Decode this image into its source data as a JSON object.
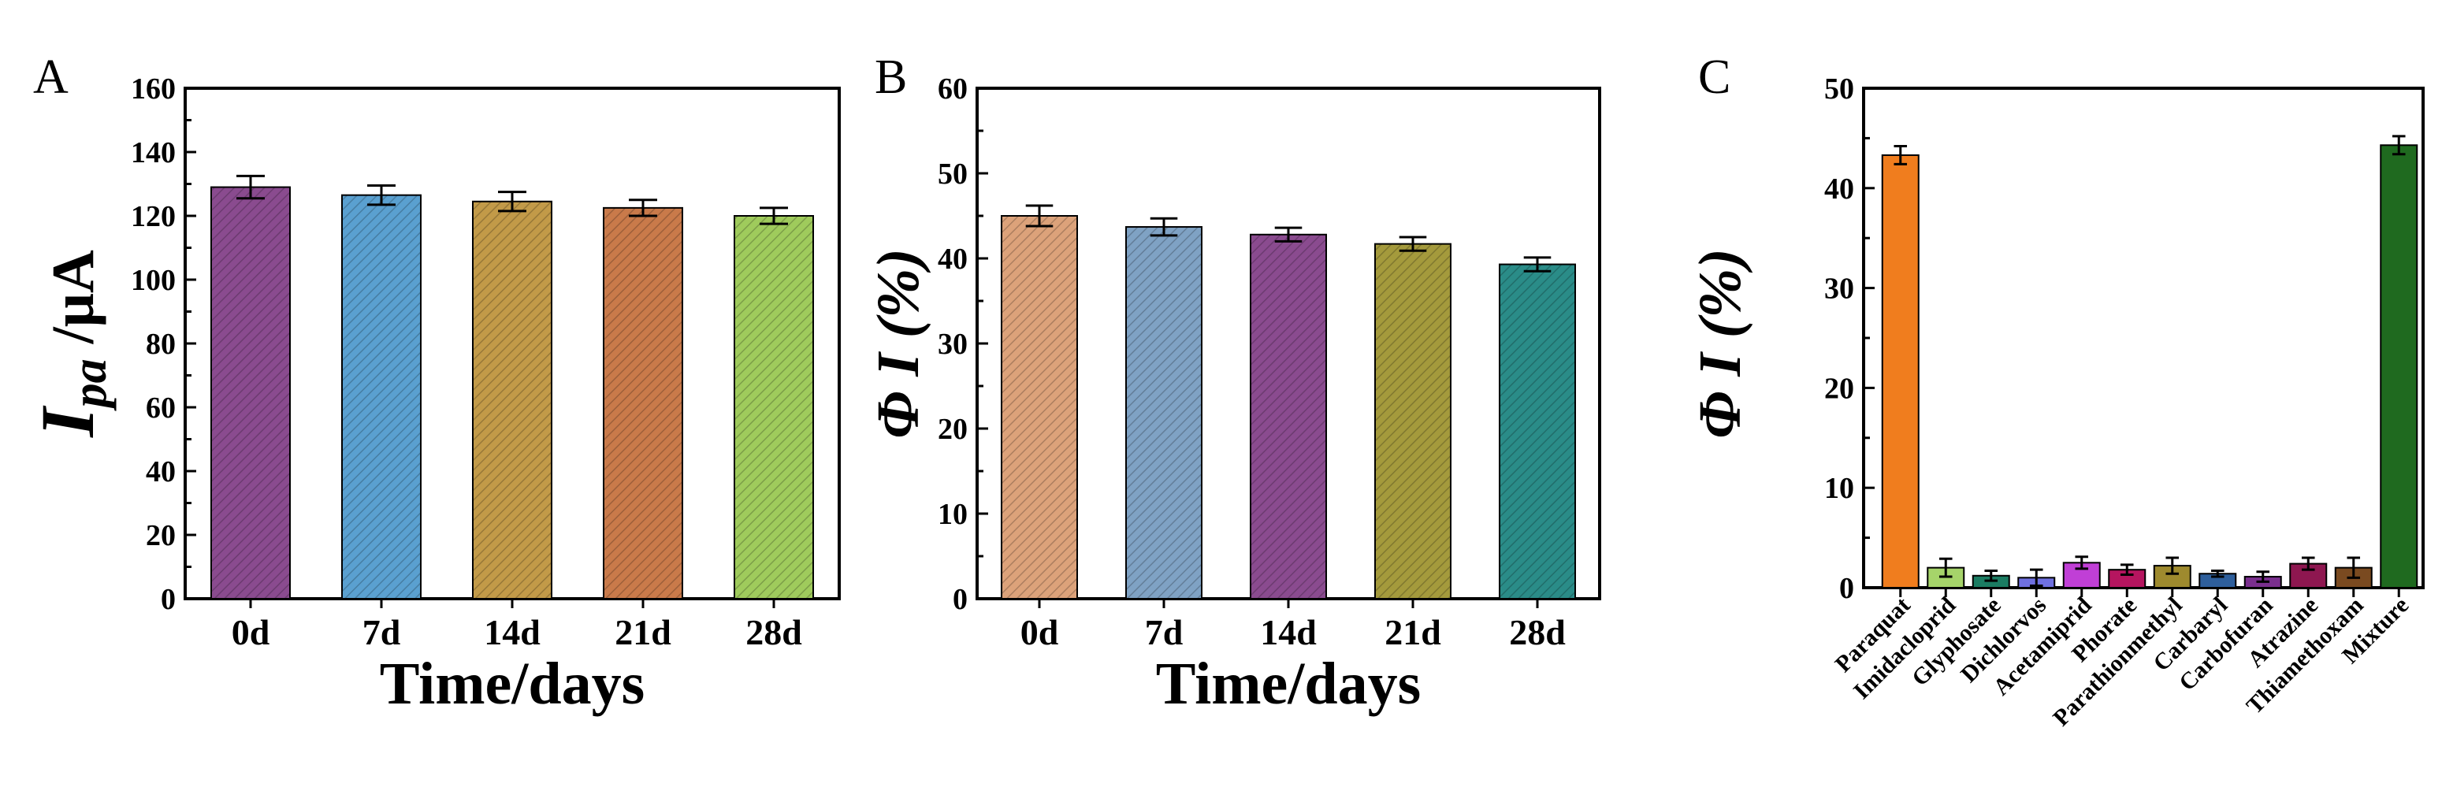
{
  "chart_data": [
    {
      "panel": "A",
      "type": "bar",
      "categories": [
        "0d",
        "7d",
        "14d",
        "21d",
        "28d"
      ],
      "values": [
        129,
        126.5,
        124.5,
        122.5,
        120
      ],
      "errors": [
        3.5,
        3,
        3,
        2.5,
        2.5
      ],
      "colors": [
        "#8a4b8f",
        "#5aa0d0",
        "#c29a48",
        "#c97a4a",
        "#9fcb5c"
      ],
      "xlabel": "Time/days",
      "ylabel": "Ipa /μA",
      "ylabel_main": "I",
      "ylabel_sub": "pa",
      "ylabel_unit": " /μA",
      "ylim": [
        0,
        160
      ],
      "yticks": [
        "0",
        "20",
        "40",
        "60",
        "80",
        "100",
        "120",
        "140",
        "160"
      ],
      "grid": false,
      "hatched": true
    },
    {
      "panel": "B",
      "type": "bar",
      "categories": [
        "0d",
        "7d",
        "14d",
        "21d",
        "28d"
      ],
      "values": [
        45,
        43.7,
        42.8,
        41.7,
        39.3
      ],
      "errors": [
        1.2,
        1,
        0.8,
        0.8,
        0.8
      ],
      "colors": [
        "#dca27a",
        "#7fa2c4",
        "#8a4b8f",
        "#a49a3c",
        "#2a8c88"
      ],
      "xlabel": "Time/days",
      "ylabel": "Φ I (%)",
      "ylim": [
        0,
        60
      ],
      "yticks": [
        "0",
        "10",
        "20",
        "30",
        "40",
        "50",
        "60"
      ],
      "grid": false,
      "hatched": true
    },
    {
      "panel": "C",
      "type": "bar",
      "categories": [
        "Paraquat",
        "Imidacloprid",
        "Glyphosate",
        "Dichlorvos",
        "Acetamiprid",
        "Phorate",
        "Parathionmethyl",
        "Carbaryl",
        "Carbofuran",
        "Atrazine",
        "Thiamethoxam",
        "Mixture"
      ],
      "values": [
        43.3,
        2,
        1.2,
        1,
        2.5,
        1.8,
        2.2,
        1.4,
        1.1,
        2.4,
        2,
        44.3
      ],
      "errors": [
        0.9,
        0.9,
        0.5,
        0.8,
        0.6,
        0.5,
        0.8,
        0.3,
        0.5,
        0.6,
        1,
        0.9
      ],
      "colors": [
        "#f07d1e",
        "#a6d46a",
        "#1b7c62",
        "#6f70e0",
        "#c03fd6",
        "#b5155f",
        "#9e8a2e",
        "#2e5f9c",
        "#7a2f8e",
        "#8e1750",
        "#7a4a20",
        "#1f6a1f"
      ],
      "ylabel": "Φ I (%)",
      "ylim": [
        0,
        50
      ],
      "yticks": [
        "0",
        "10",
        "20",
        "30",
        "40",
        "50"
      ],
      "grid": false,
      "hatched": false
    }
  ]
}
